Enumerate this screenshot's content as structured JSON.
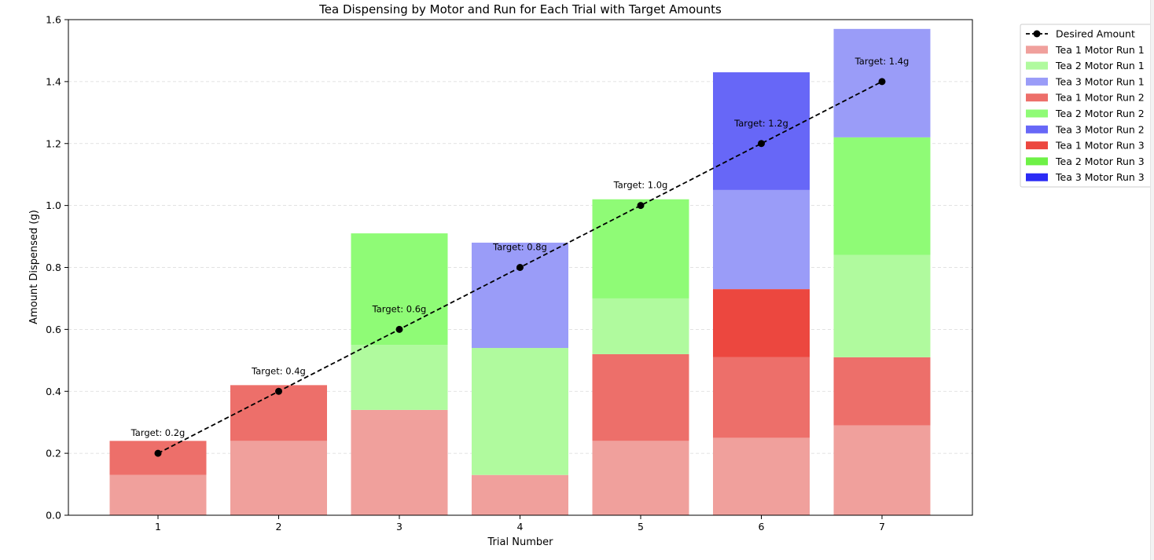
{
  "chart_data": {
    "type": "bar",
    "stacked": true,
    "title": "Tea Dispensing by Motor and Run for Each Trial with Target Amounts",
    "xlabel": "Trial Number",
    "ylabel": "Amount Dispensed (g)",
    "ylim": [
      0,
      1.6
    ],
    "y_ticks": [
      0.0,
      0.2,
      0.4,
      0.6,
      0.8,
      1.0,
      1.2,
      1.4,
      1.6
    ],
    "y_tick_labels": [
      "0.0",
      "0.2",
      "0.4",
      "0.6",
      "0.8",
      "1.0",
      "1.2",
      "1.4",
      "1.6"
    ],
    "categories": [
      "1",
      "2",
      "3",
      "4",
      "5",
      "6",
      "7"
    ],
    "grid": "horizontal dashed",
    "legend_position": "outside-top-right",
    "series": [
      {
        "name": "Tea 1 Motor Run 1",
        "color": "#f0a09c",
        "values": [
          0.13,
          0.24,
          0.34,
          0.13,
          0.24,
          0.25,
          0.29
        ]
      },
      {
        "name": "Tea 2 Motor Run 1",
        "color": "#b0fa9e",
        "values": [
          0,
          0,
          0.21,
          0.41,
          0.18,
          0,
          0.33
        ]
      },
      {
        "name": "Tea 3 Motor Run 1",
        "color": "#9a9cf8",
        "values": [
          0,
          0,
          0,
          0.34,
          0,
          0.32,
          0.35
        ]
      },
      {
        "name": "Tea 1 Motor Run 2",
        "color": "#ed6f6a",
        "values": [
          0.11,
          0.18,
          0,
          0,
          0.28,
          0.26,
          0.22
        ]
      },
      {
        "name": "Tea 2 Motor Run 2",
        "color": "#8ffb76",
        "values": [
          0,
          0,
          0.36,
          0,
          0.32,
          0,
          0.38
        ]
      },
      {
        "name": "Tea 3 Motor Run 2",
        "color": "#6767f7",
        "values": [
          0,
          0,
          0,
          0,
          0,
          0.38,
          0
        ]
      },
      {
        "name": "Tea 1 Motor Run 3",
        "color": "#ec473f",
        "values": [
          0,
          0,
          0,
          0,
          0,
          0.22,
          0
        ]
      },
      {
        "name": "Tea 2 Motor Run 3",
        "color": "#6ef146",
        "values": [
          0,
          0,
          0,
          0,
          0,
          0,
          0
        ]
      },
      {
        "name": "Tea 3 Motor Run 3",
        "color": "#2b2bf5",
        "values": [
          0,
          0,
          0,
          0,
          0,
          0,
          0
        ]
      }
    ],
    "stack_order": [
      0,
      3,
      6,
      1,
      4,
      7,
      2,
      5,
      8
    ],
    "target_line": {
      "name": "Desired Amount",
      "color": "#000000",
      "style": "dashed",
      "marker": "circle",
      "values": [
        0.2,
        0.4,
        0.6,
        0.8,
        1.0,
        1.2,
        1.4
      ]
    },
    "annotations": [
      "Target: 0.2g",
      "Target: 0.4g",
      "Target: 0.6g",
      "Target: 0.8g",
      "Target: 1.0g",
      "Target: 1.2g",
      "Target: 1.4g"
    ]
  }
}
